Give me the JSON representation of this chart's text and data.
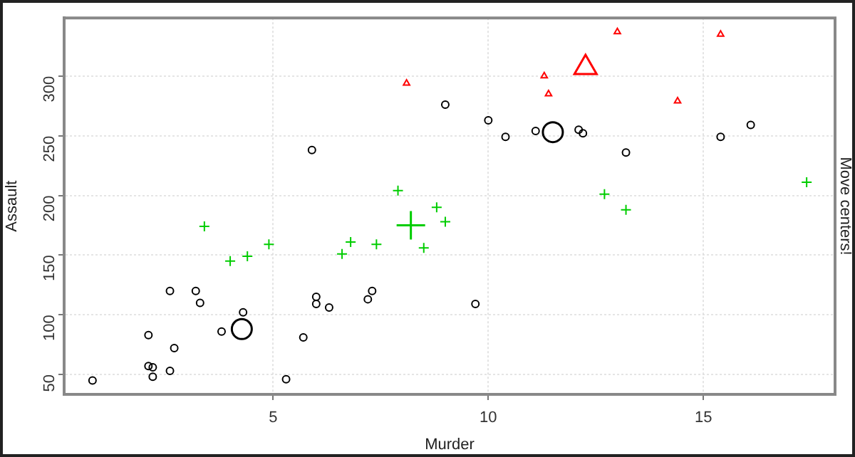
{
  "chart_data": {
    "type": "scatter",
    "xlabel": "Murder",
    "ylabel": "Assault",
    "annotations": [
      "Move centers!"
    ],
    "xlim": [
      0.14,
      18.06
    ],
    "ylim": [
      33.3,
      348.7
    ],
    "xticks": [
      5,
      10,
      15
    ],
    "yticks": [
      50,
      100,
      150,
      200,
      250,
      300
    ],
    "grid": true,
    "legend": false,
    "series": [
      {
        "type": "scatter",
        "marker": "circle",
        "color": "#000000",
        "x": [
          13.2,
          10.0,
          9.0,
          3.3,
          5.9,
          5.3,
          2.6,
          10.4,
          7.2,
          2.2,
          6.0,
          9.7,
          15.4,
          2.1,
          12.1,
          2.7,
          16.1,
          6.0,
          4.3,
          12.2,
          2.1,
          11.1,
          0.8,
          7.3,
          6.3,
          3.8,
          3.2,
          2.2,
          5.7,
          2.6
        ],
        "values": [
          236,
          263,
          276,
          110,
          238,
          46,
          120,
          249,
          113,
          56,
          115,
          109,
          249,
          83,
          255,
          72,
          259,
          109,
          102,
          252,
          57,
          254,
          45,
          120,
          106,
          86,
          120,
          48,
          81,
          53
        ]
      },
      {
        "type": "scatter",
        "marker": "triangle",
        "color": "#ff0000",
        "x": [
          8.1,
          11.3,
          11.4,
          13.0,
          15.4,
          14.4
        ],
        "values": [
          294,
          300,
          285,
          337,
          335,
          279
        ]
      },
      {
        "type": "scatter",
        "marker": "cross",
        "color": "#00cd00",
        "x": [
          8.8,
          7.9,
          4.4,
          9.0,
          7.4,
          6.6,
          4.9,
          3.4,
          13.2,
          12.7,
          8.5,
          4.0,
          6.8,
          17.4
        ],
        "values": [
          190,
          204,
          149,
          178,
          159,
          151,
          159,
          174,
          188,
          201,
          156,
          145,
          161,
          211
        ]
      },
      {
        "type": "scatter",
        "marker": "circle",
        "color": "#000000",
        "x": [
          4.27,
          11.5
        ],
        "values": [
          88,
          253
        ]
      },
      {
        "type": "scatter",
        "marker": "triangle",
        "color": "#ff0000",
        "x": [
          12.26
        ],
        "values": [
          307
        ]
      },
      {
        "type": "scatter",
        "marker": "cross",
        "color": "#00cd00",
        "x": [
          8.2
        ],
        "values": [
          175
        ]
      }
    ]
  }
}
